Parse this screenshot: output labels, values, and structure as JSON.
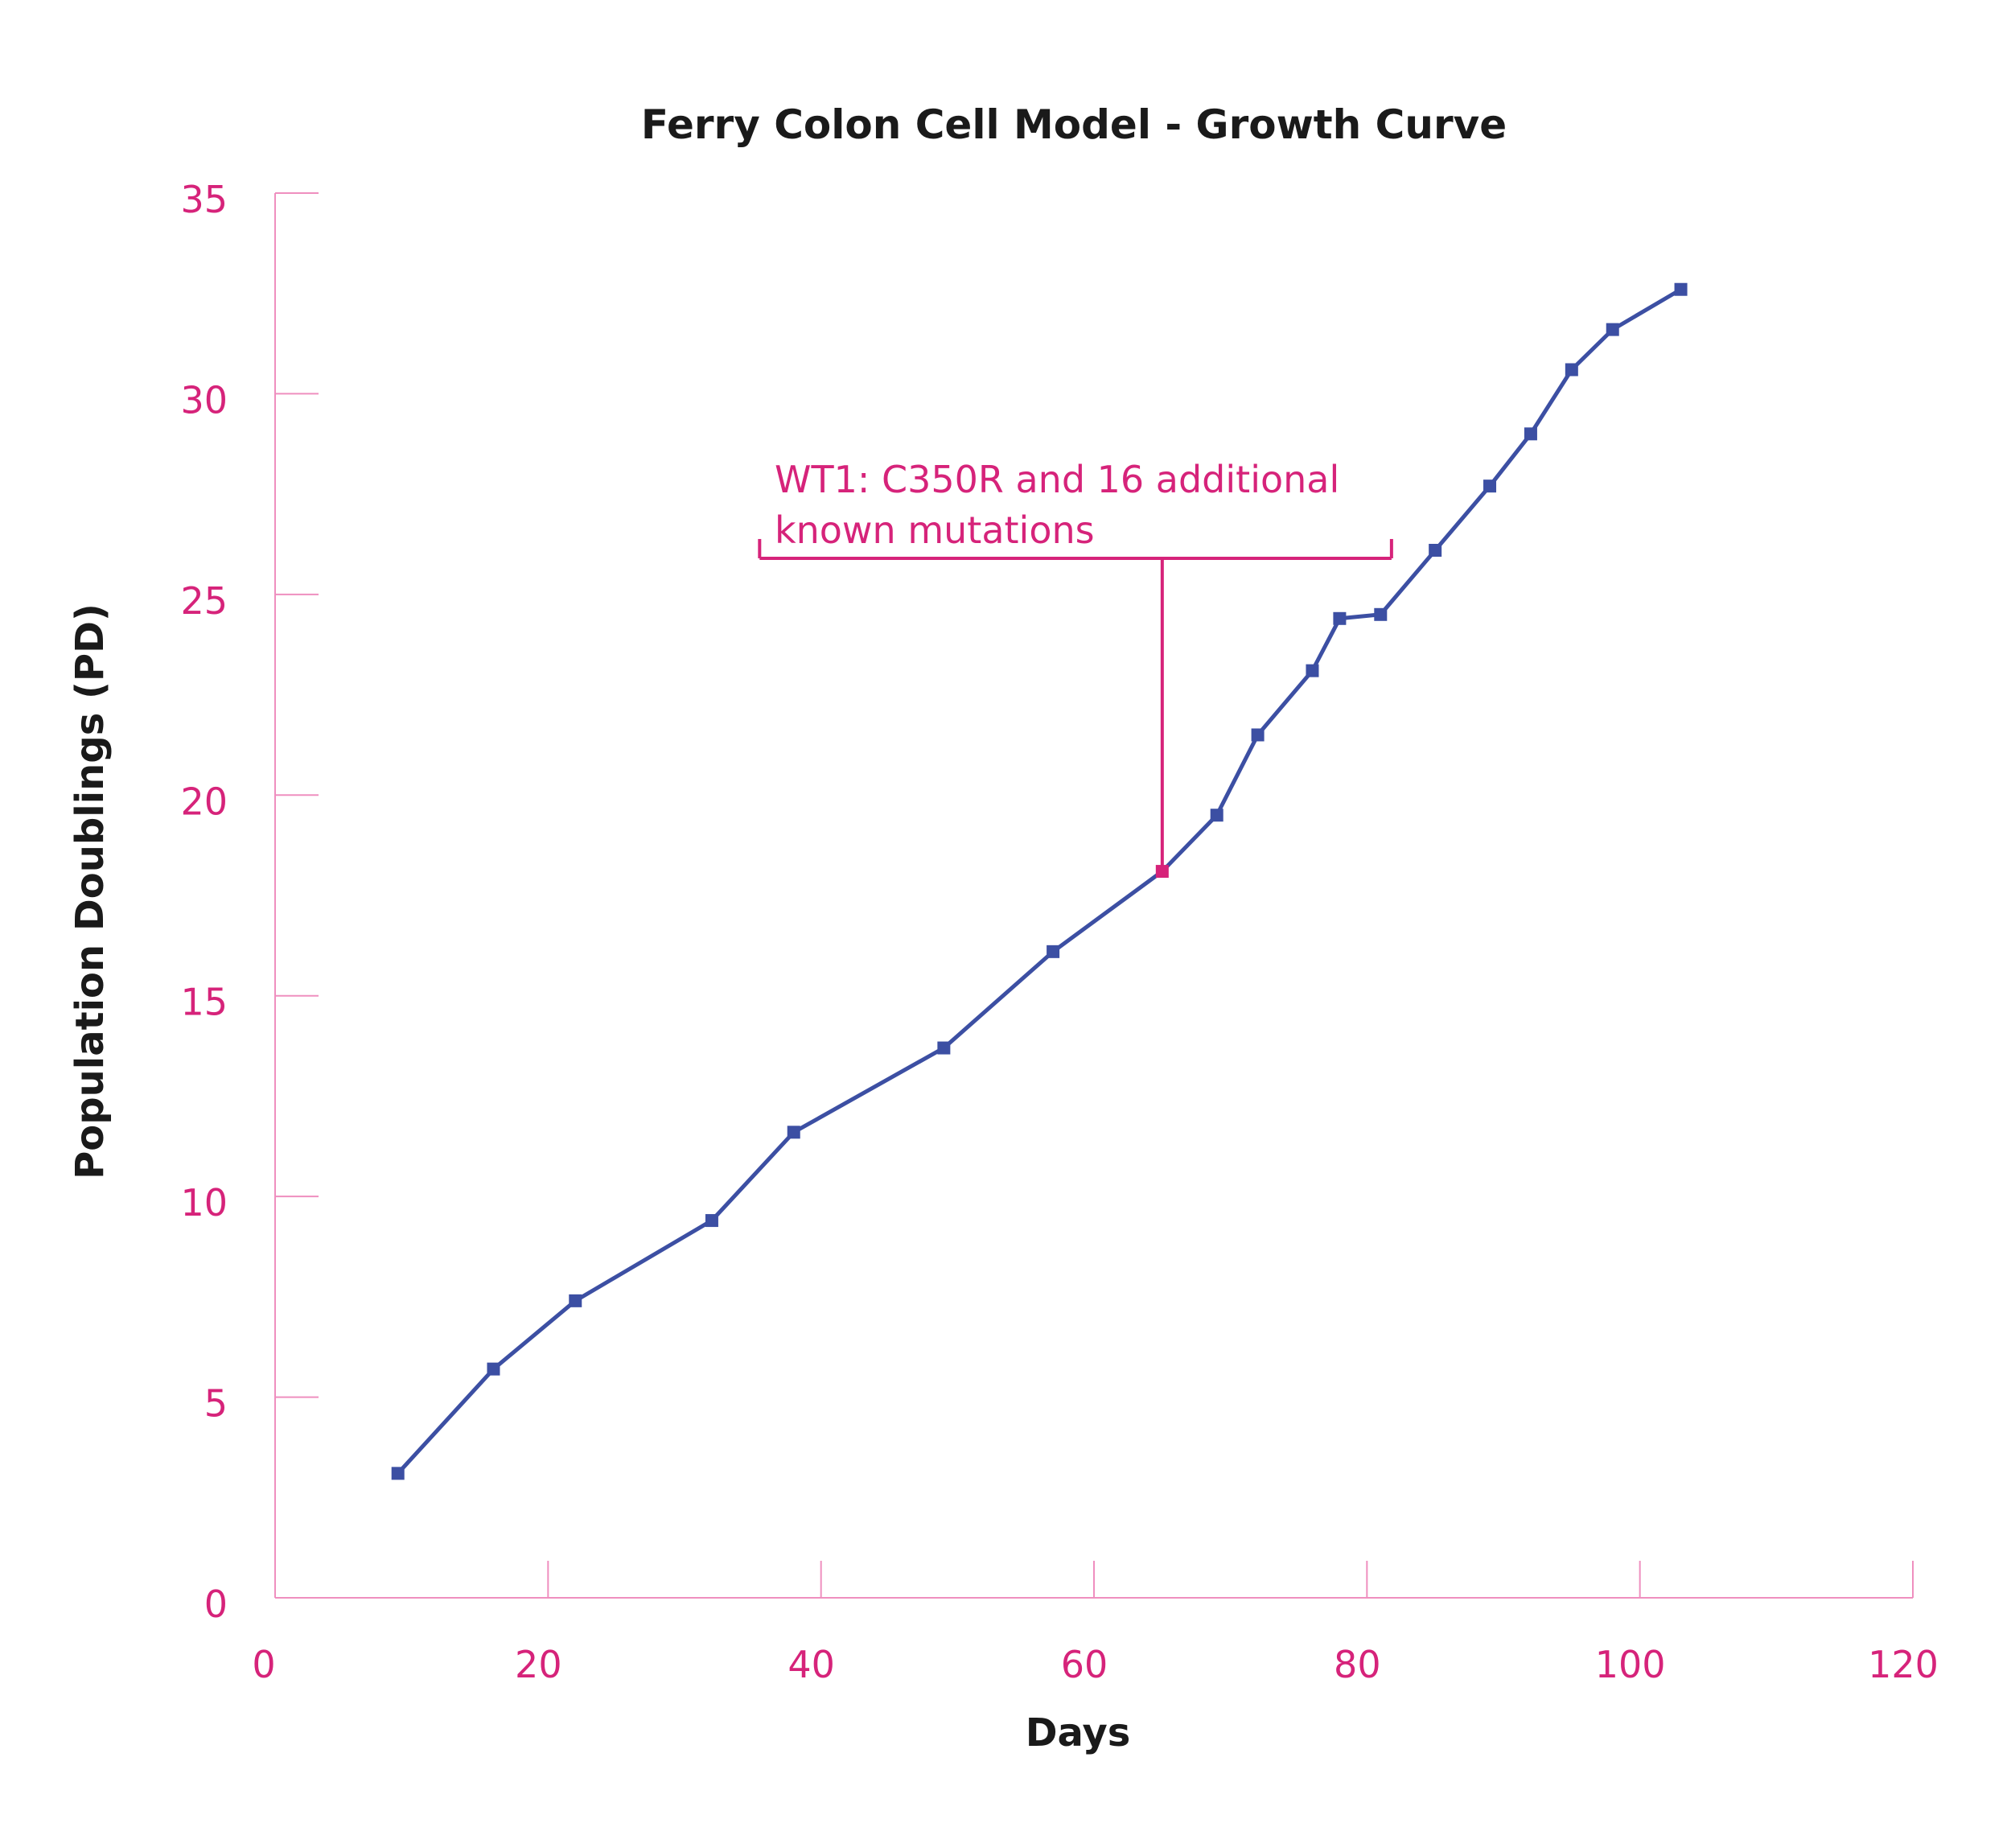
{
  "chart_data": {
    "type": "line",
    "title": "Ferry Colon Cell Model - Growth Curve",
    "xlabel": "Days",
    "ylabel": "Population Doublings (PD)",
    "xlim": [
      0,
      120
    ],
    "ylim": [
      0,
      35
    ],
    "x_ticks": [
      0,
      20,
      40,
      60,
      80,
      100,
      120
    ],
    "y_ticks": [
      0,
      5,
      10,
      15,
      20,
      25,
      30,
      35
    ],
    "grid": false,
    "series": [
      {
        "name": "Growth Curve",
        "color": "#3c4fa3",
        "x": [
          9,
          16,
          22,
          32,
          38,
          49,
          57,
          65,
          69,
          72,
          76,
          78,
          81,
          85,
          89,
          92,
          95,
          98,
          103
        ],
        "y": [
          3.1,
          5.7,
          7.4,
          9.4,
          11.6,
          13.7,
          16.1,
          18.1,
          19.5,
          21.5,
          23.1,
          24.4,
          24.5,
          26.1,
          27.7,
          29.0,
          30.6,
          31.6,
          32.6
        ]
      }
    ],
    "highlight_point": {
      "x": 65,
      "y": 18.1,
      "color": "#d6237a"
    },
    "annotation": {
      "lines": [
        "WT1: C350R and 16 additional",
        "known mutations"
      ],
      "bracket_x_range": [
        35.5,
        81.8
      ],
      "bracket_y": 25.9,
      "pointer_x": 65,
      "color": "#d6237a"
    },
    "colors": {
      "axis": "#ef8fbf",
      "tick_text": "#d6237a",
      "line": "#3c4fa3",
      "title": "#1a1a1a"
    }
  }
}
